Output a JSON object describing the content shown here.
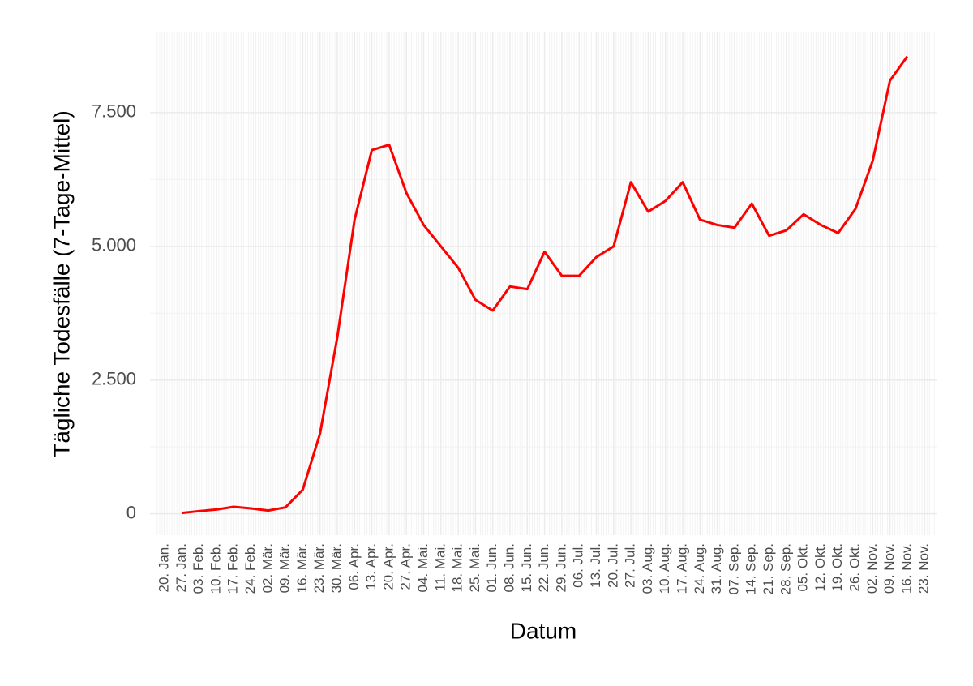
{
  "chart_data": {
    "type": "line",
    "x_label": "Datum",
    "y_label": "Tägliche Todesfälle (7-Tage-Mittel)",
    "categories": [
      "20. Jan.",
      "27. Jan.",
      "03. Feb.",
      "10. Feb.",
      "17. Feb.",
      "24. Feb.",
      "02. Mär.",
      "09. Mär.",
      "16. Mär.",
      "23. Mär.",
      "30. Mär.",
      "06. Apr.",
      "13. Apr.",
      "20. Apr.",
      "27. Apr.",
      "04. Mai.",
      "11. Mai.",
      "18. Mai.",
      "25. Mai.",
      "01. Jun.",
      "08. Jun.",
      "15. Jun.",
      "22. Jun.",
      "29. Jun.",
      "06. Jul.",
      "13. Jul.",
      "20. Jul.",
      "27. Jul.",
      "03. Aug.",
      "10. Aug.",
      "17. Aug.",
      "24. Aug.",
      "31. Aug.",
      "07. Sep.",
      "14. Sep.",
      "21. Sep.",
      "28. Sep.",
      "05. Okt.",
      "12. Okt.",
      "19. Okt.",
      "26. Okt.",
      "02. Nov.",
      "09. Nov.",
      "16. Nov.",
      "23. Nov."
    ],
    "series": [
      {
        "color": "#ff0000",
        "values": [
          null,
          15,
          50,
          80,
          130,
          100,
          60,
          120,
          450,
          1500,
          3300,
          5500,
          6800,
          6900,
          6000,
          5400,
          5000,
          4600,
          4000,
          3800,
          4250,
          4200,
          4900,
          4450,
          4450,
          4800,
          5000,
          6200,
          5650,
          5850,
          6200,
          5500,
          5400,
          5350,
          5800,
          5200,
          5300,
          5600,
          5400,
          5250,
          5700,
          6600,
          8100,
          8550,
          null
        ]
      }
    ],
    "ylim": [
      -400,
      9000
    ],
    "yticks": [
      0,
      {
        "value": 2500,
        "label": "2.500"
      },
      {
        "value": 5000,
        "label": "5.000"
      },
      {
        "value": 7500,
        "label": "7.500"
      }
    ],
    "grid": true
  }
}
